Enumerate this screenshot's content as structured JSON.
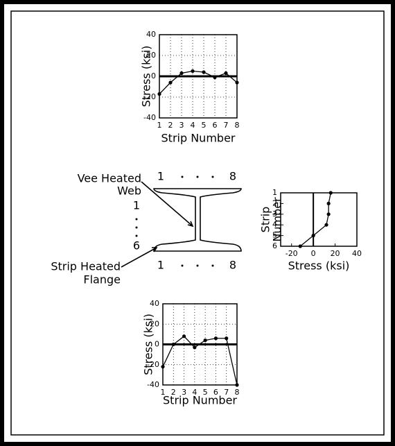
{
  "chart_data": [
    {
      "type": "line",
      "x": [
        1,
        2,
        3,
        4,
        5,
        6,
        7,
        8
      ],
      "values": [
        -17,
        -6,
        3,
        5,
        4,
        -1,
        3,
        -6
      ],
      "xlim": [
        1,
        8
      ],
      "xticks": [
        1,
        2,
        3,
        4,
        5,
        6,
        7,
        8
      ],
      "ylim": [
        -40,
        40
      ],
      "yticks": [
        -40,
        -20,
        0,
        20,
        40
      ],
      "xlabel": "Strip Number",
      "ylabel": [
        "Stress (ksi)"
      ],
      "grid": true,
      "color": "#000000"
    },
    {
      "type": "line",
      "orientation": "horizontal",
      "y": [
        1,
        2,
        3,
        4,
        5,
        6
      ],
      "values": [
        16,
        14,
        14,
        12,
        0,
        -12
      ],
      "xlim": [
        -30,
        40
      ],
      "xticks": [
        -20,
        0,
        20,
        40
      ],
      "ylim": [
        6,
        1
      ],
      "yticks": [
        1,
        2,
        3,
        4,
        5,
        6
      ],
      "xlabel": "Stress (ksi)",
      "ylabel": [
        "Strip",
        "Number"
      ],
      "grid": false,
      "color": "#000000"
    },
    {
      "type": "line",
      "x": [
        1,
        2,
        3,
        4,
        5,
        6,
        7,
        8
      ],
      "values": [
        -22,
        0,
        8,
        -3,
        4,
        6,
        6,
        -40
      ],
      "xlim": [
        1,
        8
      ],
      "xticks": [
        1,
        2,
        3,
        4,
        5,
        6,
        7,
        8
      ],
      "ylim": [
        -40,
        40
      ],
      "yticks": [
        -40,
        -20,
        0,
        20,
        40
      ],
      "xlabel": "Strip Number",
      "ylabel": [
        "Stress (ksi)"
      ],
      "grid": true,
      "color": "#000000"
    }
  ],
  "diagram": {
    "top_start": "1",
    "top_end": "8",
    "left_start": "1",
    "left_end": "6",
    "bottom_start": "1",
    "bottom_end": "8",
    "web_label": [
      "Vee Heated",
      "Web"
    ],
    "flange_label": [
      "Strip Heated",
      "Flange"
    ]
  }
}
